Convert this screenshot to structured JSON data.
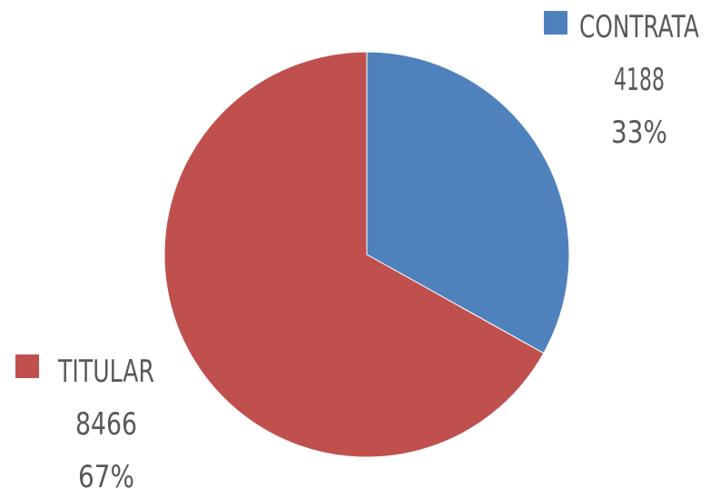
{
  "chart_data": {
    "type": "pie",
    "slices": [
      {
        "label": "CONTRATA",
        "value": 4188,
        "percent": "33%",
        "color": "#4F81BD"
      },
      {
        "label": "TITULAR",
        "value": 8466,
        "percent": "67%",
        "color": "#C0504D"
      }
    ],
    "start_angle_deg": 0,
    "direction": "clockwise",
    "label_style": "category-value-percent with legend key"
  }
}
